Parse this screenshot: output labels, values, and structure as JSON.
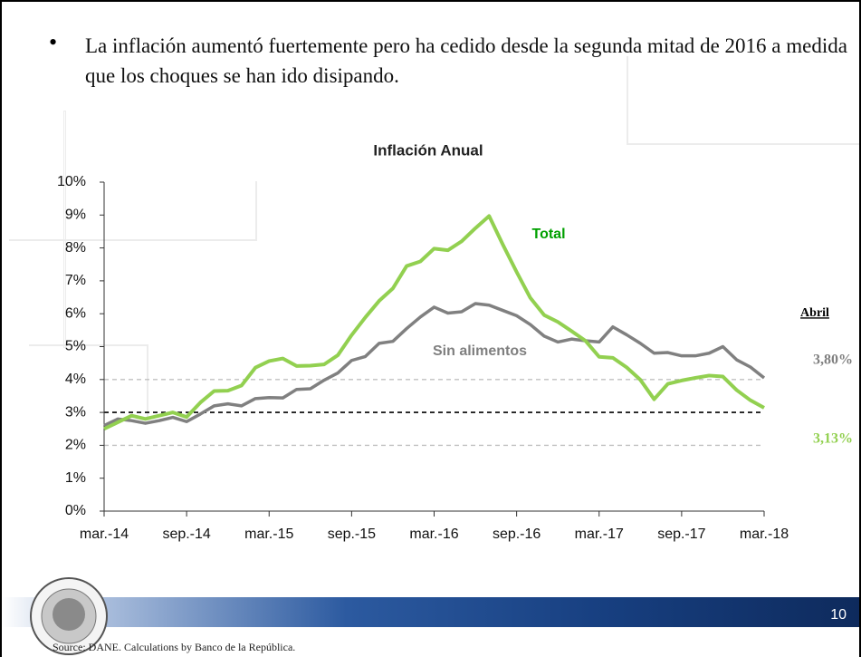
{
  "slide": {
    "bullet": "La inflación aumentó fuertemente pero ha cedido desde la segunda mitad de 2016 a medida que los choques se han ido disipando.",
    "page_number": "10",
    "source": "Source: DANE. Calculations by Banco de la República."
  },
  "chart_data": {
    "type": "line",
    "title": "Inflación Anual",
    "categories": [
      "mar.-14",
      null,
      null,
      null,
      null,
      null,
      "sep.-14",
      null,
      null,
      null,
      null,
      null,
      "mar.-15",
      null,
      null,
      null,
      null,
      null,
      "sep.-15",
      null,
      null,
      null,
      null,
      null,
      "mar.-16",
      null,
      null,
      null,
      null,
      null,
      "sep.-16",
      null,
      null,
      null,
      null,
      null,
      "mar.-17",
      null,
      null,
      null,
      null,
      null,
      "sep.-17",
      null,
      null,
      null,
      null,
      null,
      "mar.-18"
    ],
    "series": [
      {
        "name": "Total",
        "color": "#92d050",
        "label_color": "#00a000",
        "annotation": "3,13%",
        "values": [
          2.5,
          2.7,
          2.9,
          2.8,
          2.9,
          3.0,
          2.86,
          3.3,
          3.65,
          3.66,
          3.82,
          4.36,
          4.56,
          4.64,
          4.41,
          4.42,
          4.46,
          4.74,
          5.35,
          5.89,
          6.39,
          6.77,
          7.45,
          7.59,
          7.98,
          7.93,
          8.2,
          8.6,
          8.97,
          8.1,
          7.27,
          6.48,
          5.96,
          5.75,
          5.47,
          5.18,
          4.69,
          4.66,
          4.37,
          3.99,
          3.4,
          3.87,
          3.97,
          4.05,
          4.12,
          4.09,
          3.68,
          3.37,
          3.14
        ]
      },
      {
        "name": "Sin alimentos",
        "color": "#808080",
        "label_color": "#7f7f7f",
        "annotation": "3,80%",
        "values": [
          2.6,
          2.8,
          2.75,
          2.67,
          2.75,
          2.85,
          2.72,
          2.95,
          3.2,
          3.26,
          3.2,
          3.42,
          3.45,
          3.44,
          3.7,
          3.72,
          3.98,
          4.2,
          4.58,
          4.7,
          5.1,
          5.16,
          5.55,
          5.9,
          6.2,
          6.02,
          6.06,
          6.31,
          6.26,
          6.1,
          5.94,
          5.67,
          5.32,
          5.14,
          5.23,
          5.18,
          5.14,
          5.6,
          5.36,
          5.1,
          4.8,
          4.82,
          4.72,
          4.72,
          4.8,
          5.0,
          4.6,
          4.38,
          4.05
        ]
      }
    ],
    "annotation_header": "Abril",
    "reference_lines": [
      {
        "value": 2,
        "color": "#c0c0c0"
      },
      {
        "value": 3,
        "color": "#000000"
      },
      {
        "value": 4,
        "color": "#c0c0c0"
      }
    ],
    "ylim": [
      0,
      10
    ],
    "yticks": [
      {
        "value": 0,
        "label": "0%"
      },
      {
        "value": 1,
        "label": "1%"
      },
      {
        "value": 2,
        "label": "2%"
      },
      {
        "value": 3,
        "label": "3%"
      },
      {
        "value": 4,
        "label": "4%"
      },
      {
        "value": 5,
        "label": "5%"
      },
      {
        "value": 6,
        "label": "6%"
      },
      {
        "value": 7,
        "label": "7%"
      },
      {
        "value": 8,
        "label": "8%"
      },
      {
        "value": 9,
        "label": "9%"
      },
      {
        "value": 10,
        "label": "10%"
      }
    ],
    "grid": false
  }
}
